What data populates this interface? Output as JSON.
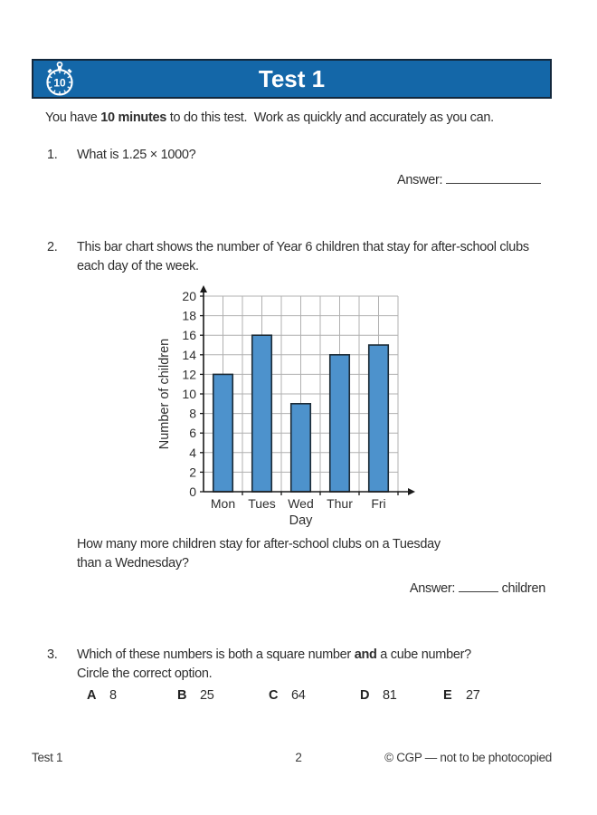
{
  "page": {
    "header": {
      "title": "Test 1",
      "timer_minutes": "10",
      "bar_color": "#1467a8",
      "bar_border_color": "#13283d"
    },
    "intro": {
      "prefix": "You have ",
      "bold": "10 minutes",
      "suffix": " to do this test.  Work as quickly and accurately as you can."
    },
    "questions": {
      "q1": {
        "number": "1.",
        "text": "What is 1.25 × 1000?",
        "answer_label": "Answer:"
      },
      "q2": {
        "number": "2.",
        "text_line1": "This bar chart shows the number of Year 6 children that stay for after-school clubs",
        "text_line2": "each day of the week.",
        "followup_line1": "How many more children stay for after-school clubs on a Tuesday",
        "followup_line2": "than a Wednesday?",
        "answer_label": "Answer:",
        "answer_suffix": "children"
      },
      "q3": {
        "number": "3.",
        "text_prefix": "Which of these numbers is both a square number ",
        "text_bold": "and",
        "text_suffix": " a cube number?",
        "text_line2": "Circle the correct option.",
        "options": [
          {
            "letter": "A",
            "value": "8"
          },
          {
            "letter": "B",
            "value": "25"
          },
          {
            "letter": "C",
            "value": "64"
          },
          {
            "letter": "D",
            "value": "81"
          },
          {
            "letter": "E",
            "value": "27"
          }
        ]
      }
    },
    "footer": {
      "left": "Test 1",
      "page_number": "2",
      "right": "© CGP — not to be photocopied"
    }
  },
  "chart_data": {
    "type": "bar",
    "categories": [
      "Mon",
      "Tues",
      "Wed",
      "Thur",
      "Fri"
    ],
    "values": [
      12,
      16,
      9,
      14,
      15
    ],
    "title": "",
    "xlabel": "Day",
    "ylabel": "Number of children",
    "ylim": [
      0,
      20
    ],
    "ytick_step": 2,
    "grid": true,
    "legend": "none",
    "bar_color": "#4d92cc",
    "bar_border_color": "#1c2b36",
    "grid_color": "#b0b0b0",
    "axis_color": "#1a1a1a"
  }
}
